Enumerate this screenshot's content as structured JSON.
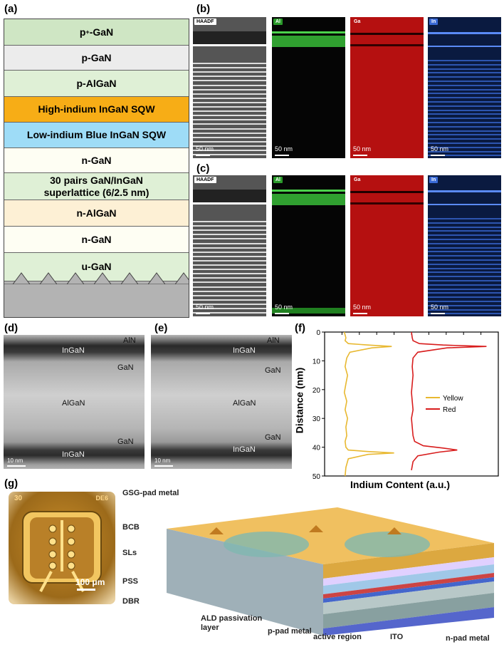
{
  "panels": {
    "a": "(a)",
    "b": "(b)",
    "c": "(c)",
    "d": "(d)",
    "e": "(e)",
    "f": "(f)",
    "g": "(g)"
  },
  "layers": [
    {
      "label": "p",
      "sup": "+",
      "rest": "-GaN",
      "color": "#cfe6c4"
    },
    {
      "label": "p-GaN",
      "sup": "",
      "rest": "",
      "color": "#ececec"
    },
    {
      "label": "p-AlGaN",
      "sup": "",
      "rest": "",
      "color": "#dff0d6"
    },
    {
      "label": "High-indium InGaN SQW",
      "sup": "",
      "rest": "",
      "color": "#f7ad16"
    },
    {
      "label": "Low-indium Blue InGaN SQW",
      "sup": "",
      "rest": "",
      "color": "#9edcf7"
    },
    {
      "label": "n-GaN",
      "sup": "",
      "rest": "",
      "color": "#fefef3"
    },
    {
      "label": "30 pairs GaN/InGaN superlattice (6/2.5 nm)",
      "sup": "",
      "rest": "",
      "color": "#dff0d6"
    },
    {
      "label": "n-AlGaN",
      "sup": "",
      "rest": "",
      "color": "#fdf0d5"
    },
    {
      "label": "n-GaN",
      "sup": "",
      "rest": "",
      "color": "#fefef3"
    },
    {
      "label": "u-GaN",
      "sup": "",
      "rest": "",
      "color": "#dff0d6"
    }
  ],
  "substrate_color": "#b3b3b3",
  "eds": {
    "tags": [
      "HAADF",
      "Al",
      "Ga",
      "In"
    ],
    "scale": "50 nm",
    "colors": {
      "haadf": "#9a9a9a",
      "al": "#1e8a2a",
      "ga": "#b51010",
      "in": "#3a6ad6"
    }
  },
  "tem": {
    "labels": [
      "AlN",
      "InGaN",
      "GaN",
      "AlGaN",
      "GaN",
      "InGaN"
    ],
    "scale": "10 nm"
  },
  "chart_data": {
    "type": "line",
    "xlabel": "Indium Content (a.u.)",
    "ylabel": "Distance (nm)",
    "ylim": [
      0,
      50
    ],
    "yticks": [
      0,
      10,
      20,
      30,
      40,
      50
    ],
    "y_inverted": true,
    "legend_placement": "right",
    "series": [
      {
        "name": "Yellow",
        "color": "#e8b830",
        "x": [
          0.25,
          0.27,
          0.26,
          0.3,
          0.55,
          0.85,
          0.6,
          0.32,
          0.28,
          0.26,
          0.29,
          0.27,
          0.25,
          0.28,
          0.26,
          0.29,
          0.27,
          0.28,
          0.26,
          0.27,
          0.3,
          0.55,
          0.88,
          0.55,
          0.3,
          0.27,
          0.26
        ],
        "y": [
          0,
          2,
          3,
          4,
          4.5,
          5,
          5.5,
          7,
          9,
          12,
          15,
          18,
          21,
          24,
          27,
          30,
          33,
          36,
          38,
          40,
          41,
          41.5,
          42,
          42.5,
          44,
          47,
          50
        ]
      },
      {
        "name": "Red",
        "color": "#d81d1d",
        "x": [
          1.1,
          1.11,
          1.12,
          1.2,
          1.5,
          2.05,
          1.55,
          1.18,
          1.12,
          1.11,
          1.12,
          1.11,
          1.1,
          1.11,
          1.12,
          1.1,
          1.11,
          1.12,
          1.14,
          1.25,
          1.5,
          1.68,
          1.45,
          1.18,
          1.12,
          1.1
        ],
        "y": [
          0,
          2,
          3,
          4,
          4.5,
          5,
          5.5,
          7,
          9,
          12,
          15,
          18,
          21,
          24,
          27,
          30,
          33,
          36,
          38,
          39.5,
          40.3,
          41,
          41.7,
          43,
          45,
          48
        ]
      }
    ]
  },
  "chip": {
    "label_tl": "30",
    "label_tr": "DE6",
    "scale": "100 μm"
  },
  "device_labels": {
    "gsg": "GSG-pad metal",
    "bcb": "BCB",
    "sls": "SLs",
    "pss": "PSS",
    "dbr": "DBR",
    "ald": "ALD passivation layer",
    "ppad": "p-pad metal",
    "active": "active region",
    "ito": "ITO",
    "npad": "n-pad metal"
  }
}
